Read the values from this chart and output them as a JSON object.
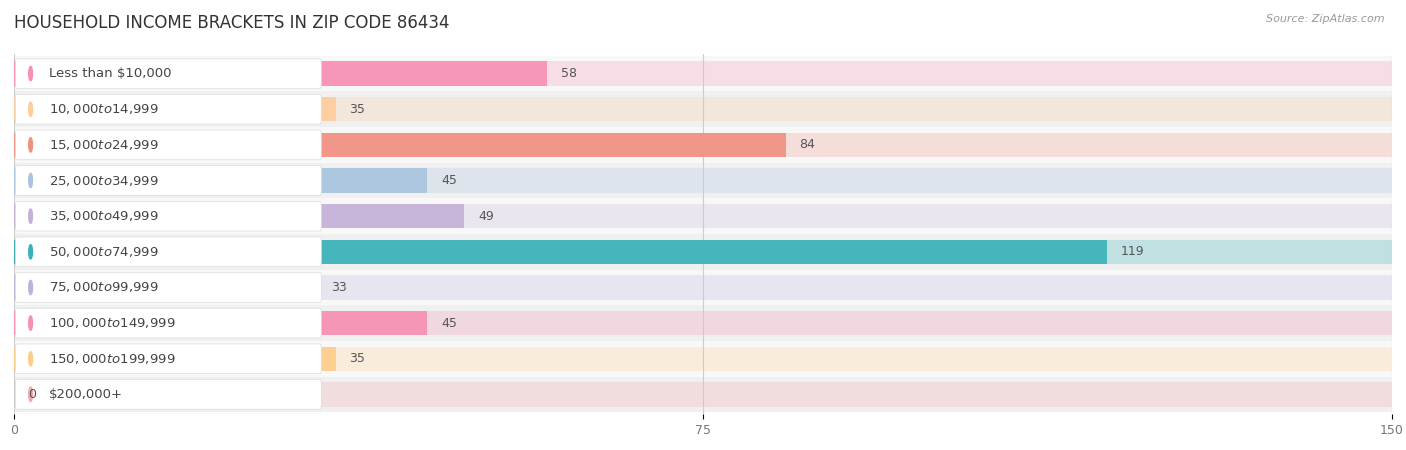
{
  "title": "HOUSEHOLD INCOME BRACKETS IN ZIP CODE 86434",
  "source": "Source: ZipAtlas.com",
  "categories": [
    "Less than $10,000",
    "$10,000 to $14,999",
    "$15,000 to $24,999",
    "$25,000 to $34,999",
    "$35,000 to $49,999",
    "$50,000 to $74,999",
    "$75,000 to $99,999",
    "$100,000 to $149,999",
    "$150,000 to $199,999",
    "$200,000+"
  ],
  "values": [
    58,
    35,
    84,
    45,
    49,
    119,
    33,
    45,
    35,
    0
  ],
  "bar_colors": [
    "#F78FB3",
    "#FFCC99",
    "#F09080",
    "#A8C4E0",
    "#C5B0D8",
    "#38B2B8",
    "#B8B4DC",
    "#F78FB3",
    "#FFCC88",
    "#F4A8A8"
  ],
  "xlim": [
    0,
    150
  ],
  "xticks": [
    0,
    75,
    150
  ],
  "title_fontsize": 12,
  "label_fontsize": 9.5,
  "value_fontsize": 9
}
